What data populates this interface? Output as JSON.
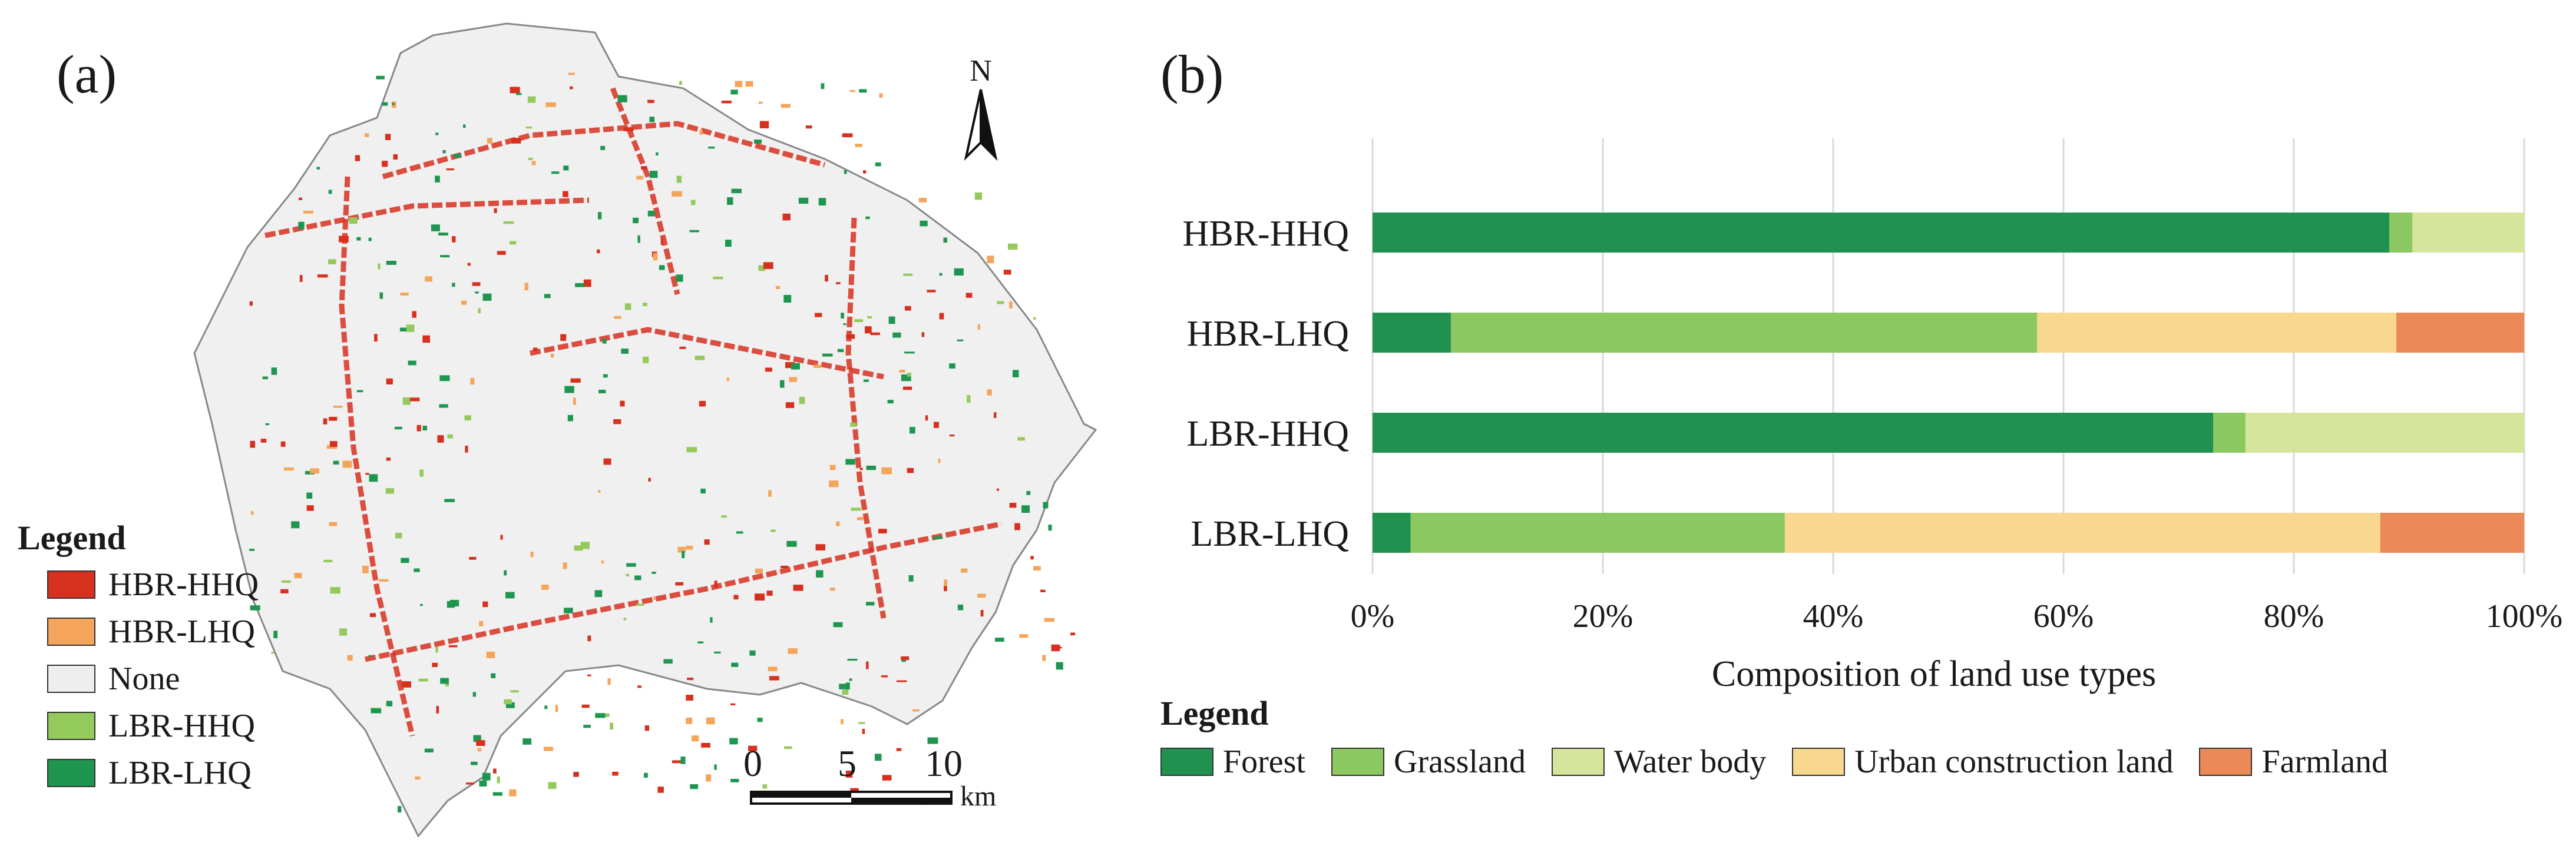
{
  "panel_a": {
    "label": "(a)",
    "legend_title": "Legend",
    "legend": [
      {
        "label": "HBR-HHQ",
        "color": "#d7301f"
      },
      {
        "label": "HBR-LHQ",
        "color": "#f4a55b"
      },
      {
        "label": "None",
        "color": "#eeeeee"
      },
      {
        "label": "LBR-HHQ",
        "color": "#94c95c"
      },
      {
        "label": "LBR-LHQ",
        "color": "#1f9650"
      }
    ],
    "north_label": "N",
    "scale": {
      "ticks": [
        "0",
        "5",
        "10"
      ],
      "unit": "km"
    }
  },
  "panel_b": {
    "label": "(b)",
    "legend_title": "Legend"
  },
  "chart_data": {
    "type": "bar",
    "orientation": "horizontal",
    "stacked": true,
    "categories": [
      "HBR-HHQ",
      "HBR-LHQ",
      "LBR-HHQ",
      "LBR-LHQ"
    ],
    "series": [
      {
        "name": "Forest",
        "color": "#219150",
        "values": [
          88.3,
          6.8,
          73.0,
          3.3
        ]
      },
      {
        "name": "Grassland",
        "color": "#8bc860",
        "values": [
          2.0,
          50.9,
          2.8,
          32.5
        ]
      },
      {
        "name": "Water body",
        "color": "#d5e59b",
        "values": [
          9.7,
          0,
          24.2,
          0
        ]
      },
      {
        "name": "Urban construction land",
        "color": "#f8d78f",
        "values": [
          0,
          31.2,
          0,
          51.7
        ]
      },
      {
        "name": "Farmland",
        "color": "#ec8a57",
        "values": [
          0,
          11.1,
          0,
          12.5
        ]
      }
    ],
    "xlabel": "Composition of land use types",
    "xlim": [
      0,
      100
    ],
    "xticks": [
      "0%",
      "20%",
      "40%",
      "60%",
      "80%",
      "100%"
    ],
    "grid": true,
    "legend_position": "bottom"
  }
}
